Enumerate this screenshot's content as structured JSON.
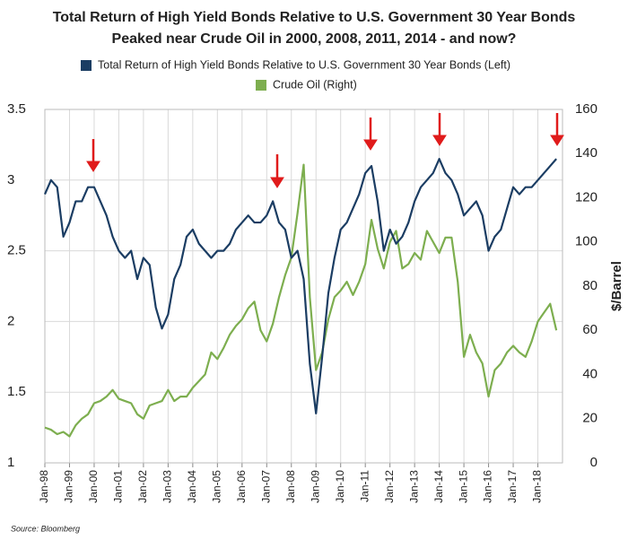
{
  "chart_data": {
    "type": "line",
    "title": [
      "Total Return of High Yield Bonds Relative to U.S. Government 30 Year Bonds",
      "Peaked near Crude Oil in 2000, 2008, 2011, 2014 - and now?"
    ],
    "y2label": "$/Barrel",
    "source": "Source: Bloomberg",
    "x": [
      "1998-01",
      "1998-04",
      "1998-07",
      "1998-10",
      "1999-01",
      "1999-04",
      "1999-07",
      "1999-10",
      "2000-01",
      "2000-04",
      "2000-07",
      "2000-10",
      "2001-01",
      "2001-04",
      "2001-07",
      "2001-10",
      "2002-01",
      "2002-04",
      "2002-07",
      "2002-10",
      "2003-01",
      "2003-04",
      "2003-07",
      "2003-10",
      "2004-01",
      "2004-04",
      "2004-07",
      "2004-10",
      "2005-01",
      "2005-04",
      "2005-07",
      "2005-10",
      "2006-01",
      "2006-04",
      "2006-07",
      "2006-10",
      "2007-01",
      "2007-04",
      "2007-07",
      "2007-10",
      "2008-01",
      "2008-04",
      "2008-07",
      "2008-10",
      "2009-01",
      "2009-04",
      "2009-07",
      "2009-10",
      "2010-01",
      "2010-04",
      "2010-07",
      "2010-10",
      "2011-01",
      "2011-04",
      "2011-07",
      "2011-10",
      "2012-01",
      "2012-04",
      "2012-07",
      "2012-10",
      "2013-01",
      "2013-04",
      "2013-07",
      "2013-10",
      "2014-01",
      "2014-04",
      "2014-07",
      "2014-10",
      "2015-01",
      "2015-04",
      "2015-07",
      "2015-10",
      "2016-01",
      "2016-04",
      "2016-07",
      "2016-10",
      "2017-01",
      "2017-04",
      "2017-07",
      "2017-10",
      "2018-01",
      "2018-04",
      "2018-07",
      "2018-10"
    ],
    "xlim": [
      "1998-01",
      "2019-01"
    ],
    "xticks": [
      {
        "value": "1998-01",
        "label": "Jan-98"
      },
      {
        "value": "1999-01",
        "label": "Jan-99"
      },
      {
        "value": "2000-01",
        "label": "Jan-00"
      },
      {
        "value": "2001-01",
        "label": "Jan-01"
      },
      {
        "value": "2002-01",
        "label": "Jan-02"
      },
      {
        "value": "2003-01",
        "label": "Jan-03"
      },
      {
        "value": "2004-01",
        "label": "Jan-04"
      },
      {
        "value": "2005-01",
        "label": "Jan-05"
      },
      {
        "value": "2006-01",
        "label": "Jan-06"
      },
      {
        "value": "2007-01",
        "label": "Jan-07"
      },
      {
        "value": "2008-01",
        "label": "Jan-08"
      },
      {
        "value": "2009-01",
        "label": "Jan-09"
      },
      {
        "value": "2010-01",
        "label": "Jan-10"
      },
      {
        "value": "2011-01",
        "label": "Jan-11"
      },
      {
        "value": "2012-01",
        "label": "Jan-12"
      },
      {
        "value": "2013-01",
        "label": "Jan-13"
      },
      {
        "value": "2014-01",
        "label": "Jan-14"
      },
      {
        "value": "2015-01",
        "label": "Jan-15"
      },
      {
        "value": "2016-01",
        "label": "Jan-16"
      },
      {
        "value": "2017-01",
        "label": "Jan-17"
      },
      {
        "value": "2018-01",
        "label": "Jan-18"
      }
    ],
    "ylim": [
      1,
      3.5
    ],
    "yticks": [
      1,
      1.5,
      2,
      2.5,
      3,
      3.5
    ],
    "y2lim": [
      0,
      160
    ],
    "y2ticks": [
      0,
      20,
      40,
      60,
      80,
      100,
      120,
      140,
      160
    ],
    "grid": true,
    "series": [
      {
        "name": "Total Return of High Yield Bonds Relative to U.S. Government 30 Year Bonds (Left)",
        "color": "#1b3d63",
        "values": [
          2.9,
          3.0,
          2.95,
          2.6,
          2.7,
          2.85,
          2.85,
          2.95,
          2.95,
          2.85,
          2.75,
          2.6,
          2.5,
          2.45,
          2.5,
          2.3,
          2.45,
          2.4,
          2.1,
          1.95,
          2.05,
          2.3,
          2.4,
          2.6,
          2.65,
          2.55,
          2.5,
          2.45,
          2.5,
          2.5,
          2.55,
          2.65,
          2.7,
          2.75,
          2.7,
          2.7,
          2.75,
          2.85,
          2.7,
          2.65,
          2.45,
          2.5,
          2.3,
          1.7,
          1.35,
          1.75,
          2.2,
          2.45,
          2.65,
          2.7,
          2.8,
          2.9,
          3.05,
          3.1,
          2.85,
          2.5,
          2.65,
          2.55,
          2.6,
          2.7,
          2.85,
          2.95,
          3.0,
          3.05,
          3.15,
          3.05,
          3.0,
          2.9,
          2.75,
          2.8,
          2.85,
          2.75,
          2.5,
          2.6,
          2.65,
          2.8,
          2.95,
          2.9,
          2.95,
          2.95,
          3.0,
          3.05,
          3.1,
          3.15
        ]
      },
      {
        "name": "Crude Oil (Right)",
        "color": "#7dae4f",
        "axis": "y2",
        "values": [
          16,
          15,
          13,
          14,
          12,
          17,
          20,
          22,
          27,
          28,
          30,
          33,
          29,
          28,
          27,
          22,
          20,
          26,
          27,
          28,
          33,
          28,
          30,
          30,
          34,
          37,
          40,
          50,
          47,
          52,
          58,
          62,
          65,
          70,
          73,
          60,
          55,
          63,
          75,
          85,
          93,
          113,
          135,
          75,
          42,
          50,
          65,
          75,
          78,
          82,
          76,
          82,
          90,
          110,
          97,
          88,
          100,
          105,
          88,
          90,
          95,
          92,
          105,
          100,
          95,
          102,
          102,
          82,
          48,
          58,
          50,
          45,
          30,
          42,
          45,
          50,
          53,
          50,
          48,
          55,
          64,
          68,
          72,
          60
        ]
      }
    ]
  }
}
